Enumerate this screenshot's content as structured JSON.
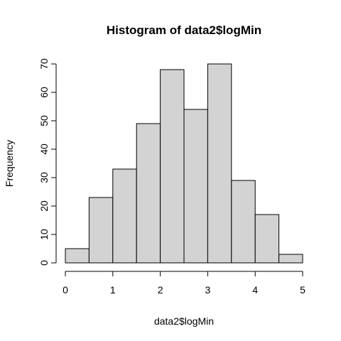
{
  "chart_data": {
    "type": "bar",
    "title": "Histogram of data2$logMin",
    "xlabel": "data2$logMin",
    "ylabel": "Frequency",
    "bin_edges": [
      0,
      0.5,
      1,
      1.5,
      2,
      2.5,
      3,
      3.5,
      4,
      4.5,
      5
    ],
    "values": [
      5,
      23,
      33,
      49,
      68,
      54,
      70,
      29,
      17,
      3
    ],
    "xlim": [
      0,
      5
    ],
    "ylim": [
      0,
      70
    ],
    "x_ticks": [
      "0",
      "1",
      "2",
      "3",
      "4",
      "5"
    ],
    "y_ticks": [
      "0",
      "10",
      "20",
      "30",
      "40",
      "50",
      "60",
      "70"
    ],
    "grid": false,
    "bar_color": "#d3d3d3",
    "edge_color": "#000000"
  }
}
